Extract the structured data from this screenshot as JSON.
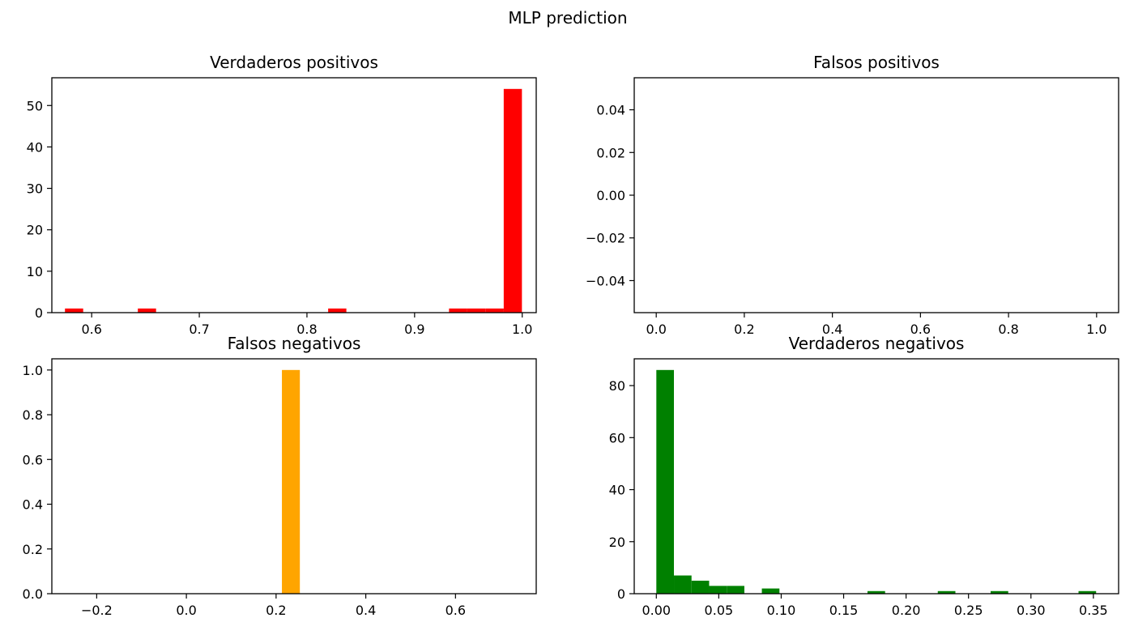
{
  "figure": {
    "title": "MLP prediction"
  },
  "chart_data": [
    {
      "id": "tp",
      "type": "bar",
      "title": "Verdaderos positivos",
      "color": "#ff0000",
      "xlim": [
        0.563,
        1.013
      ],
      "ylim": [
        0,
        56.7
      ],
      "xticks": [
        0.6,
        0.7,
        0.8,
        0.9,
        1.0
      ],
      "xtick_labels": [
        "0.6",
        "0.7",
        "0.8",
        "0.9",
        "1.0"
      ],
      "yticks": [
        0,
        10,
        20,
        30,
        40,
        50
      ],
      "ytick_labels": [
        "0",
        "10",
        "20",
        "30",
        "40",
        "50"
      ],
      "bin_width": 0.01692,
      "bins": [
        {
          "x": 0.5752,
          "value": 1
        },
        {
          "x": 0.6429,
          "value": 1
        },
        {
          "x": 0.8197,
          "value": 1
        },
        {
          "x": 0.932,
          "value": 1
        },
        {
          "x": 0.9489,
          "value": 1
        },
        {
          "x": 0.9659,
          "value": 1
        },
        {
          "x": 0.9828,
          "value": 54
        }
      ]
    },
    {
      "id": "fp",
      "type": "bar",
      "title": "Falsos positivos",
      "color": "#1f77b4",
      "xlim": [
        -0.05,
        1.05
      ],
      "ylim": [
        -0.055,
        0.055
      ],
      "xticks": [
        0.0,
        0.2,
        0.4,
        0.6,
        0.8,
        1.0
      ],
      "xtick_labels": [
        "0.0",
        "0.2",
        "0.4",
        "0.6",
        "0.8",
        "1.0"
      ],
      "yticks": [
        -0.04,
        -0.02,
        0.0,
        0.02,
        0.04
      ],
      "ytick_labels": [
        "−0.04",
        "−0.02",
        "0.00",
        "0.02",
        "0.04"
      ],
      "bin_width": 0.05,
      "bins": []
    },
    {
      "id": "fn",
      "type": "bar",
      "title": "Falsos negativos",
      "color": "#ffa500",
      "xlim": [
        -0.3,
        0.78
      ],
      "ylim": [
        0,
        1.05
      ],
      "xticks": [
        -0.2,
        0.0,
        0.2,
        0.4,
        0.6
      ],
      "xtick_labels": [
        "−0.2",
        "0.0",
        "0.2",
        "0.4",
        "0.6"
      ],
      "yticks": [
        0.0,
        0.2,
        0.4,
        0.6,
        0.8,
        1.0
      ],
      "ytick_labels": [
        "0.0",
        "0.2",
        "0.4",
        "0.6",
        "0.8",
        "1.0"
      ],
      "bin_width": 0.04,
      "bins": [
        {
          "x": 0.213,
          "value": 1
        }
      ]
    },
    {
      "id": "tn",
      "type": "bar",
      "title": "Verdaderos negativos",
      "color": "#008000",
      "xlim": [
        -0.0177,
        0.3702
      ],
      "ylim": [
        0,
        90.3
      ],
      "xticks": [
        0.0,
        0.05,
        0.1,
        0.15,
        0.2,
        0.25,
        0.3,
        0.35
      ],
      "xtick_labels": [
        "0.00",
        "0.05",
        "0.10",
        "0.15",
        "0.20",
        "0.25",
        "0.30",
        "0.35"
      ],
      "yticks": [
        0,
        20,
        40,
        60,
        80
      ],
      "ytick_labels": [
        "0",
        "20",
        "40",
        "60",
        "80"
      ],
      "bin_width": 0.01409,
      "bins": [
        {
          "x": 0.0,
          "value": 86
        },
        {
          "x": 0.0141,
          "value": 7
        },
        {
          "x": 0.0282,
          "value": 5
        },
        {
          "x": 0.0423,
          "value": 3
        },
        {
          "x": 0.0564,
          "value": 3
        },
        {
          "x": 0.0845,
          "value": 2
        },
        {
          "x": 0.1691,
          "value": 1
        },
        {
          "x": 0.2254,
          "value": 1
        },
        {
          "x": 0.2677,
          "value": 1
        },
        {
          "x": 0.3381,
          "value": 1
        }
      ]
    }
  ]
}
